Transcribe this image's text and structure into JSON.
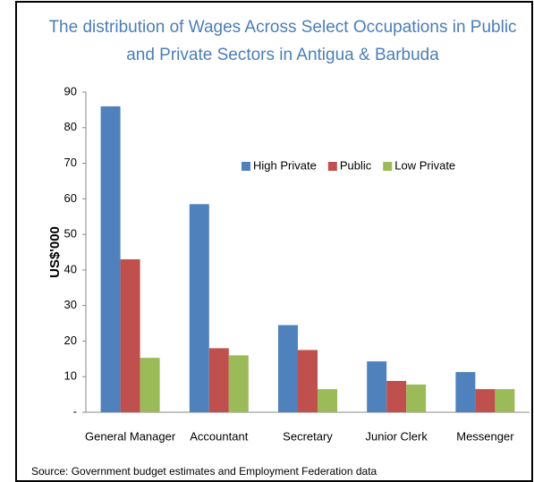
{
  "chart_data": {
    "type": "bar",
    "title": [
      "The distribution of Wages Across Select Occupations in Public",
      "and Private Sectors in Antigua & Barbuda"
    ],
    "y_label": "US$'000",
    "source": "Source: Government budget estimates and Employment Federation data",
    "categories": [
      "General Manager",
      "Accountant",
      "Secretary",
      "Junior Clerk",
      "Messenger"
    ],
    "series": [
      {
        "name": "High Private",
        "color": "#4f81bd",
        "values": [
          86,
          58.5,
          24.5,
          14.3,
          11.3
        ]
      },
      {
        "name": "Public",
        "color": "#c0504d",
        "values": [
          43,
          18,
          17.5,
          8.8,
          6.5
        ]
      },
      {
        "name": "Low Private",
        "color": "#9bbb59",
        "values": [
          15.3,
          16,
          6.5,
          7.8,
          6.5
        ]
      }
    ],
    "ylim": [
      0,
      90
    ],
    "yticks": [
      {
        "value": 0,
        "label": "-"
      },
      10,
      20,
      30,
      40,
      50,
      60,
      70,
      80,
      90
    ],
    "legend": "upper right"
  }
}
